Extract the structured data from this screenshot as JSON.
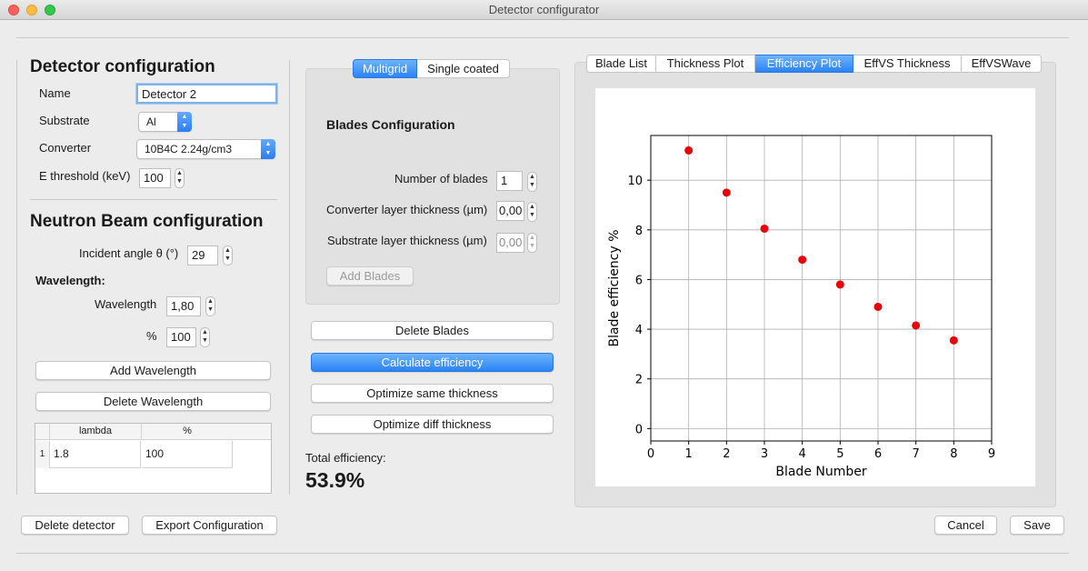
{
  "window": {
    "title": "Detector configurator"
  },
  "detector": {
    "heading": "Detector configuration",
    "name_label": "Name",
    "name_value": "Detector 2",
    "substrate_label": "Substrate",
    "substrate_value": "Al",
    "converter_label": "Converter",
    "converter_value": "10B4C 2.24g/cm3",
    "threshold_label": "E threshold (keV)",
    "threshold_value": "100"
  },
  "beam": {
    "heading": "Neutron Beam configuration",
    "angle_label": "Incident angle θ (°)",
    "angle_value": "29",
    "wavelength_heading": "Wavelength:",
    "wavelength_label": "Wavelength",
    "wavelength_value": "1,80",
    "percent_label": "%",
    "percent_value": "100",
    "add_wavelength": "Add Wavelength",
    "delete_wavelength": "Delete Wavelength",
    "table": {
      "headers": [
        "lambda",
        "%"
      ],
      "rows": [
        {
          "index": "1",
          "lambda": "1.8",
          "percent": "100"
        }
      ]
    }
  },
  "blades": {
    "mode_tabs": [
      "Multigrid",
      "Single coated"
    ],
    "heading": "Blades Configuration",
    "number_label": "Number of blades",
    "number_value": "1",
    "converter_thickness_label": "Converter layer thickness (µm)",
    "converter_thickness_value": "0,00",
    "substrate_thickness_label": "Substrate layer thickness (µm)",
    "substrate_thickness_value": "0,00",
    "add_blades": "Add Blades",
    "delete_blades": "Delete Blades",
    "calculate": "Calculate efficiency",
    "optimize_same": "Optimize same thickness",
    "optimize_diff": "Optimize diff thickness",
    "total_label": "Total efficiency:",
    "total_value": "53.9%"
  },
  "tabs": [
    "Blade List",
    "Thickness Plot",
    "Efficiency Plot",
    "EffVS Thickness",
    "EffVSWave"
  ],
  "footer": {
    "delete_detector": "Delete detector",
    "export": "Export Configuration",
    "cancel": "Cancel",
    "save": "Save"
  },
  "colors": {
    "accent": "#2b83f6",
    "marker": "#e8000b"
  },
  "chart_data": {
    "type": "scatter",
    "title": "",
    "xlabel": "Blade Number",
    "ylabel": "Blade efficiency %",
    "xlim": [
      0,
      9
    ],
    "ylim": [
      -0.5,
      11.8
    ],
    "xticks": [
      0,
      1,
      2,
      3,
      4,
      5,
      6,
      7,
      8,
      9
    ],
    "yticks": [
      0,
      2,
      4,
      6,
      8,
      10
    ],
    "grid": true,
    "x": [
      1,
      2,
      3,
      4,
      5,
      6,
      7,
      8
    ],
    "y": [
      11.2,
      9.5,
      8.05,
      6.8,
      5.8,
      4.9,
      4.15,
      3.55
    ]
  }
}
